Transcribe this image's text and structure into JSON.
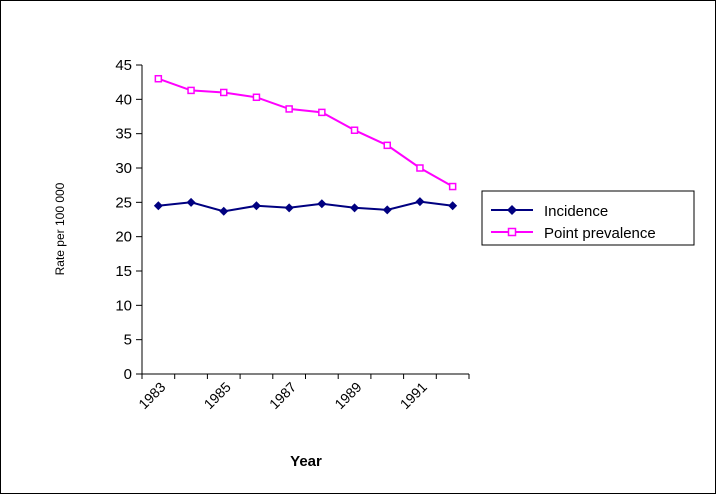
{
  "chart_data": {
    "type": "line",
    "title": "",
    "xlabel": "Year",
    "ylabel": "Rate per 100 000",
    "x": [
      1983,
      1984,
      1985,
      1986,
      1987,
      1988,
      1989,
      1990,
      1991,
      1992
    ],
    "x_tick_labels": [
      "1983",
      "1985",
      "1987",
      "1989",
      "1991"
    ],
    "ylim": [
      0,
      45
    ],
    "y_ticks": [
      0,
      5,
      10,
      15,
      20,
      25,
      30,
      35,
      40,
      45
    ],
    "grid": false,
    "legend_position": "right",
    "series": [
      {
        "name": "Incidence",
        "color": "#000080",
        "marker": "diamond",
        "values": [
          24.5,
          25.0,
          23.7,
          24.5,
          24.2,
          24.8,
          24.2,
          23.9,
          25.1,
          24.5
        ]
      },
      {
        "name": "Point prevalence",
        "color": "#FF00FF",
        "marker": "square",
        "values": [
          43.0,
          41.3,
          41.0,
          40.3,
          38.6,
          38.1,
          35.5,
          33.3,
          30.0,
          27.3
        ]
      }
    ]
  }
}
